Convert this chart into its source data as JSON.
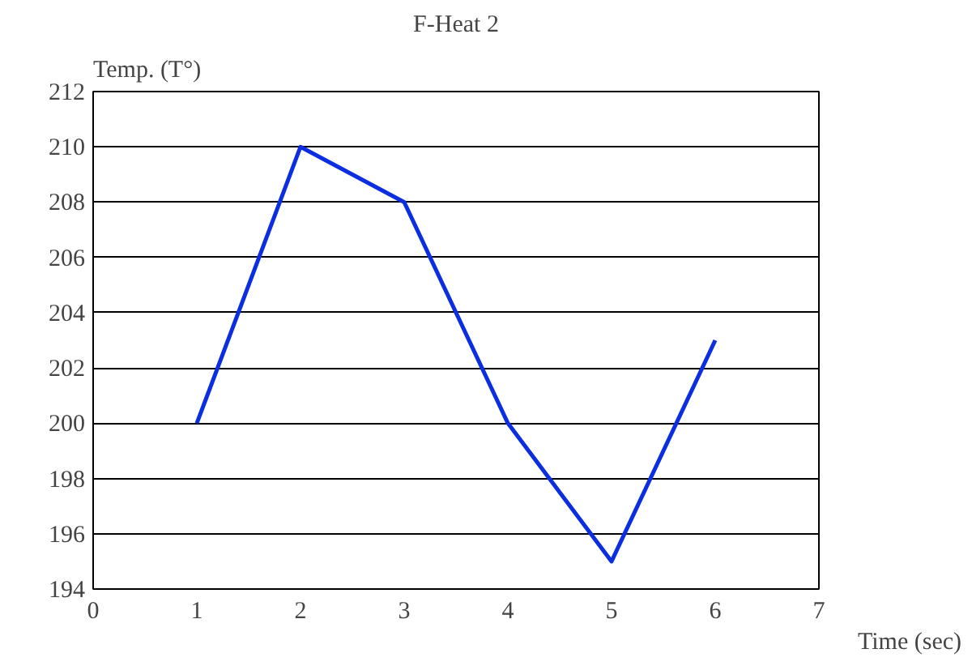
{
  "chart_data": {
    "type": "line",
    "title": "F-Heat 2",
    "xlabel": "Time (sec)",
    "ylabel": "Temp. (T°)",
    "x": [
      1,
      2,
      3,
      4,
      5,
      6
    ],
    "series": [
      {
        "color": "#0a2ee0",
        "values": [
          200,
          210,
          208,
          200,
          195,
          203
        ]
      }
    ],
    "xlim": [
      0,
      7
    ],
    "xticks": [
      0,
      1,
      2,
      3,
      4,
      5,
      6,
      7
    ],
    "ylim": [
      194,
      212
    ],
    "yticks": [
      194,
      196,
      198,
      200,
      202,
      204,
      206,
      208,
      210,
      212
    ],
    "grid": "y",
    "marker": "none",
    "line_style": "solid"
  }
}
